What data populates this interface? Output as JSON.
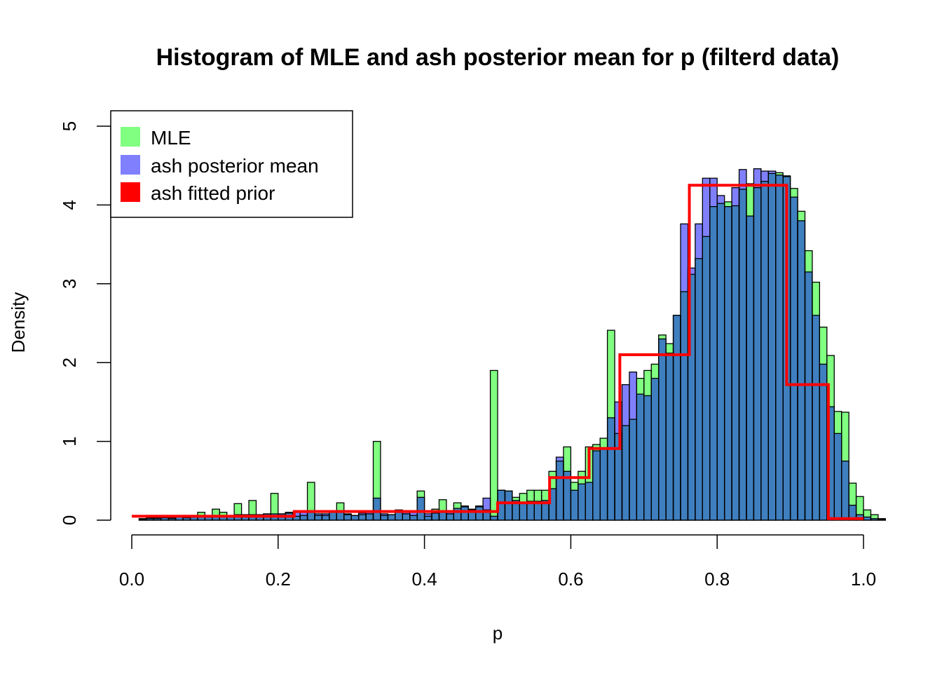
{
  "chart_data": {
    "type": "bar",
    "title": "Histogram of MLE and ash posterior mean for p (filterd data)",
    "xlabel": "p",
    "ylabel": "Density",
    "xlim": [
      0,
      1
    ],
    "ylim": [
      0,
      5
    ],
    "x_ticks": [
      "0.0",
      "0.2",
      "0.4",
      "0.6",
      "0.8",
      "1.0"
    ],
    "y_ticks": [
      "0",
      "1",
      "2",
      "3",
      "4",
      "5"
    ],
    "grid": false,
    "legend_position": "top-left",
    "bin_width": 0.01,
    "bin_start": 0.01,
    "series": [
      {
        "name": "MLE",
        "color": "#80ff80",
        "values": [
          0.01,
          0.02,
          0.02,
          0.03,
          0.02,
          0.05,
          0.03,
          0.04,
          0.1,
          0.06,
          0.14,
          0.1,
          0.05,
          0.21,
          0.07,
          0.25,
          0.07,
          0.08,
          0.34,
          0.08,
          0.1,
          0.05,
          0.06,
          0.48,
          0.06,
          0.06,
          0.1,
          0.22,
          0.08,
          0.06,
          0.07,
          0.08,
          1.0,
          0.06,
          0.07,
          0.13,
          0.08,
          0.06,
          0.37,
          0.05,
          0.14,
          0.26,
          0.08,
          0.22,
          0.18,
          0.13,
          0.17,
          0.13,
          1.9,
          0.38,
          0.37,
          0.29,
          0.34,
          0.38,
          0.38,
          0.38,
          0.62,
          0.75,
          0.93,
          0.48,
          0.62,
          0.93,
          0.96,
          1.04,
          2.41,
          1.1,
          1.2,
          1.28,
          1.8,
          1.9,
          1.98,
          2.35,
          2.24,
          2.6,
          2.9,
          3.12,
          3.32,
          3.6,
          3.98,
          4.02,
          4.04,
          3.99,
          4.2,
          4.27,
          4.22,
          4.3,
          4.4,
          4.41,
          4.37,
          4.21,
          3.92,
          3.42,
          3.02,
          2.45,
          2.09,
          1.38,
          1.37,
          0.47,
          0.3,
          0.13,
          0.07,
          0.02
        ]
      },
      {
        "name": "ash posterior mean",
        "color": "#8080ff",
        "values": [
          0.02,
          0.03,
          0.03,
          0.04,
          0.03,
          0.04,
          0.04,
          0.05,
          0.05,
          0.05,
          0.06,
          0.06,
          0.06,
          0.07,
          0.07,
          0.07,
          0.07,
          0.08,
          0.08,
          0.08,
          0.09,
          0.1,
          0.1,
          0.12,
          0.08,
          0.08,
          0.1,
          0.12,
          0.07,
          0.06,
          0.09,
          0.1,
          0.28,
          0.08,
          0.07,
          0.1,
          0.12,
          0.11,
          0.29,
          0.08,
          0.09,
          0.1,
          0.12,
          0.15,
          0.17,
          0.14,
          0.18,
          0.28,
          0.05,
          0.38,
          0.37,
          0.25,
          0.22,
          0.24,
          0.24,
          0.25,
          0.4,
          0.8,
          0.62,
          0.38,
          0.46,
          0.48,
          0.88,
          0.92,
          1.3,
          1.5,
          1.72,
          1.88,
          1.6,
          1.58,
          1.8,
          2.3,
          2.12,
          2.6,
          3.76,
          3.2,
          3.76,
          4.34,
          4.34,
          4.12,
          3.98,
          4.22,
          4.45,
          3.86,
          4.46,
          4.43,
          4.43,
          4.38,
          4.36,
          4.1,
          3.8,
          3.15,
          2.6,
          1.98,
          1.44,
          1.1,
          0.75,
          0.19,
          0.07,
          0.04,
          0.02,
          0.01
        ]
      },
      {
        "name": "ash fitted prior",
        "color": "#ff0000",
        "steps": [
          {
            "x0": 0.0,
            "x1": 0.222,
            "y": 0.05
          },
          {
            "x0": 0.222,
            "x1": 0.5,
            "y": 0.11
          },
          {
            "x0": 0.5,
            "x1": 0.571,
            "y": 0.22
          },
          {
            "x0": 0.571,
            "x1": 0.625,
            "y": 0.54
          },
          {
            "x0": 0.625,
            "x1": 0.667,
            "y": 0.91
          },
          {
            "x0": 0.667,
            "x1": 0.762,
            "y": 2.1
          },
          {
            "x0": 0.762,
            "x1": 0.895,
            "y": 4.25
          },
          {
            "x0": 0.895,
            "x1": 0.952,
            "y": 1.72
          },
          {
            "x0": 0.952,
            "x1": 1.0,
            "y": 0.02
          }
        ]
      }
    ],
    "overlap_color": "#3f7fbf"
  }
}
